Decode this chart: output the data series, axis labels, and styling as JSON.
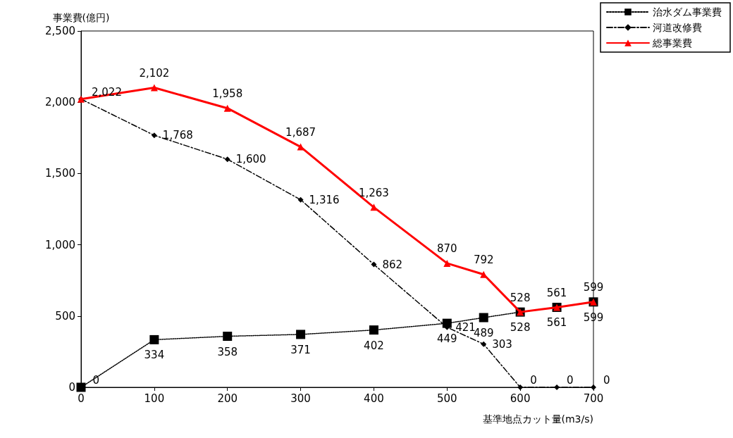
{
  "chart_data": {
    "type": "line",
    "xlabel": "基準地点カット量(m3/s)",
    "ylabel": "事業費(億円)",
    "x": [
      0,
      100,
      200,
      300,
      400,
      500,
      550,
      600,
      650,
      700
    ],
    "xlim": [
      0,
      700
    ],
    "xticks": [
      0,
      100,
      200,
      300,
      400,
      500,
      600,
      700
    ],
    "ylim": [
      0,
      2500
    ],
    "yticks": [
      0,
      {
        "value": 500,
        "label": "500"
      },
      {
        "value": 1000,
        "label": "1,000"
      },
      {
        "value": 1500,
        "label": "1,500"
      },
      {
        "value": 2000,
        "label": "2,000"
      },
      {
        "value": 2500,
        "label": "2,500"
      }
    ],
    "grid": false,
    "legend": "top right",
    "series": [
      {
        "name": "治水ダム事業費",
        "color": "#000000",
        "marker": "square",
        "line_style": "dotted",
        "values": [
          0,
          334,
          358,
          371,
          402,
          449,
          489,
          528,
          561,
          599
        ],
        "value_labels": [
          "0",
          "334",
          "358",
          "371",
          "402",
          "449",
          "489",
          "528",
          "561",
          "599"
        ]
      },
      {
        "name": "河道改修費",
        "color": "#000000",
        "marker": "diamond",
        "line_style": "dashed",
        "values": [
          2022,
          1768,
          1600,
          1316,
          862,
          421,
          303,
          0,
          0,
          0
        ],
        "value_labels": [
          null,
          "1,768",
          "1,600",
          "1,316",
          "862",
          "421",
          "303",
          "0",
          "0",
          "0"
        ]
      },
      {
        "name": "総事業費",
        "color": "#ff0000",
        "marker": "triangle",
        "line_style": "solid",
        "values": [
          2022,
          2102,
          1958,
          1687,
          1263,
          870,
          792,
          528,
          561,
          599
        ],
        "value_labels": [
          "2,022",
          "2,102",
          "1,958",
          "1,687",
          "1,263",
          "870",
          "792",
          "528",
          "561",
          "599"
        ]
      }
    ]
  }
}
